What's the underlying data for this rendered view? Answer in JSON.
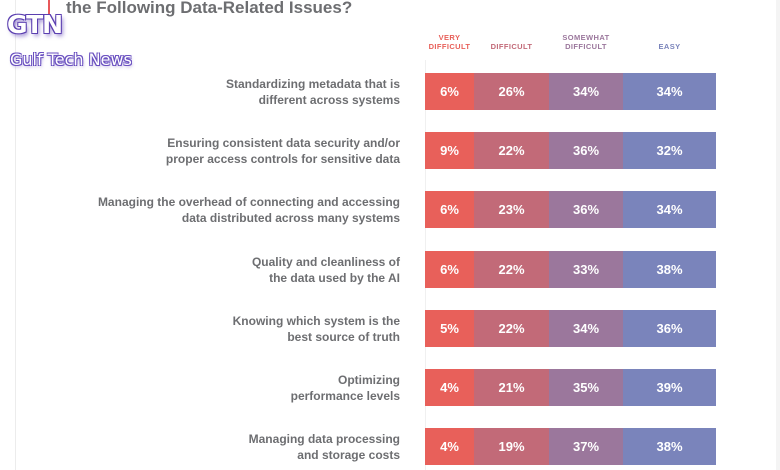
{
  "title": "the Following Data-Related Issues?",
  "watermark": {
    "logo": "GTN",
    "name": "Gulf Tech News"
  },
  "colors": {
    "very_difficult": "#e8605a",
    "difficult": "#c26a78",
    "somewhat_difficult": "#9b779c",
    "easy": "#7a84bb",
    "label_text": "#6d6e71"
  },
  "chart_data": {
    "type": "bar",
    "orientation": "horizontal-stacked",
    "title": "the Following Data-Related Issues?",
    "xlabel": "",
    "ylabel": "",
    "legend_position": "top",
    "legend": [
      "VERY DIFFICULT",
      "DIFFICULT",
      "SOMEWHAT DIFFICULT",
      "EASY"
    ],
    "categories": [
      "Standardizing metadata that is different across systems",
      "Ensuring consistent data security and/or proper access controls for sensitive data",
      "Managing the overhead of connecting and accessing data distributed across many systems",
      "Quality and cleanliness of the data used by the AI",
      "Knowing which system is the best source of truth",
      "Optimizing performance levels",
      "Managing data processing and storage costs"
    ],
    "category_lines": [
      [
        "Standardizing metadata that is",
        "different across systems"
      ],
      [
        "Ensuring consistent data security and/or",
        "proper access controls for sensitive data"
      ],
      [
        "Managing the overhead of connecting and accessing",
        "data distributed across many systems"
      ],
      [
        "Quality and cleanliness of",
        "the data used by the AI"
      ],
      [
        "Knowing which system is the",
        "best source of truth"
      ],
      [
        "Optimizing",
        "performance levels"
      ],
      [
        "Managing data processing",
        "and storage costs"
      ]
    ],
    "series": [
      {
        "name": "VERY DIFFICULT",
        "values": [
          6,
          9,
          6,
          6,
          5,
          4,
          4
        ]
      },
      {
        "name": "DIFFICULT",
        "values": [
          26,
          22,
          23,
          22,
          22,
          21,
          19
        ]
      },
      {
        "name": "SOMEWHAT DIFFICULT",
        "values": [
          34,
          36,
          36,
          33,
          34,
          35,
          37
        ]
      },
      {
        "name": "EASY",
        "values": [
          34,
          32,
          34,
          38,
          36,
          39,
          38
        ]
      }
    ],
    "value_format": "percent"
  }
}
